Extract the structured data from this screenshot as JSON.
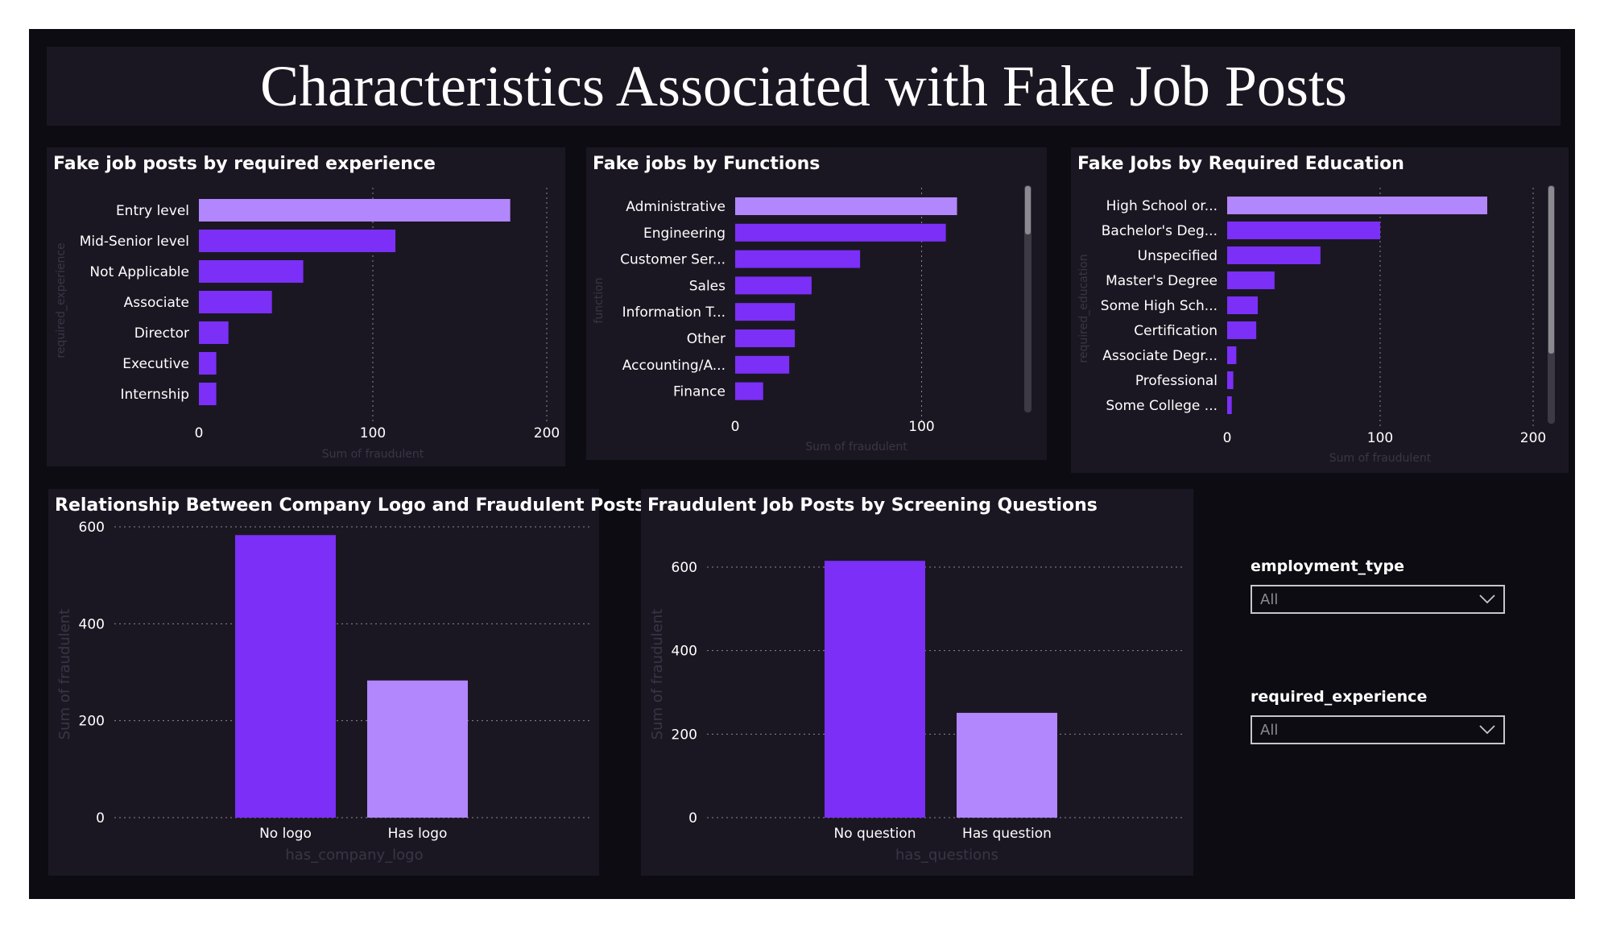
{
  "page": {
    "title": "Characteristics Associated with Fake Job Posts"
  },
  "colors": {
    "background": "#0d0c12",
    "panel": "#1b1722",
    "dark_purple": "#7b2ff7",
    "light_purple": "#b286fd",
    "text": "#ffffff"
  },
  "chart_data": [
    {
      "id": "experience",
      "type": "bar",
      "orientation": "horizontal",
      "title": "Fake job posts by required experience",
      "xlabel": "Sum of fraudulent",
      "ylabel": "required_experience",
      "categories": [
        "Entry level",
        "Mid-Senior level",
        "Not Applicable",
        "Associate",
        "Director",
        "Executive",
        "Internship"
      ],
      "values": [
        179,
        113,
        60,
        42,
        17,
        10,
        10
      ],
      "xlim": [
        0,
        200
      ],
      "xticks": [
        0,
        100,
        200
      ],
      "highlight_first": true,
      "grid": true
    },
    {
      "id": "functions",
      "type": "bar",
      "orientation": "horizontal",
      "title": "Fake jobs by Functions",
      "xlabel": "Sum of fraudulent",
      "ylabel": "function",
      "categories": [
        "Administrative",
        "Engineering",
        "Customer Ser...",
        "Sales",
        "Information T...",
        "Other",
        "Accounting/A...",
        "Finance"
      ],
      "values": [
        119,
        113,
        67,
        41,
        32,
        32,
        29,
        15
      ],
      "xlim": [
        0,
        130
      ],
      "xticks": [
        0,
        100
      ],
      "highlight_first": true,
      "grid": true,
      "scrollbar": true
    },
    {
      "id": "education",
      "type": "bar",
      "orientation": "horizontal",
      "title": "Fake Jobs by Required Education",
      "xlabel": "Sum of fraudulent",
      "ylabel": "required_education",
      "categories": [
        "High School or...",
        "Bachelor's Deg...",
        "Unspecified",
        "Master's Degree",
        "Some High Sch...",
        "Certification",
        "Associate Degr...",
        "Professional",
        "Some College ..."
      ],
      "values": [
        170,
        100,
        61,
        31,
        20,
        19,
        6,
        4,
        3
      ],
      "xlim": [
        0,
        200
      ],
      "xticks": [
        0,
        100,
        200
      ],
      "highlight_first": true,
      "grid": true,
      "scrollbar": true
    },
    {
      "id": "logo",
      "type": "bar",
      "orientation": "vertical",
      "title": "Relationship Between Company Logo and Fraudulent Posts",
      "xlabel": "has_company_logo",
      "ylabel": "Sum of fraudulent",
      "categories": [
        "No logo",
        "Has logo"
      ],
      "values": [
        583,
        283
      ],
      "ylim": [
        0,
        600
      ],
      "yticks": [
        0,
        200,
        400,
        600
      ],
      "grid": true
    },
    {
      "id": "questions",
      "type": "bar",
      "orientation": "vertical",
      "title": "Fraudulent Job Posts by Screening Questions",
      "xlabel": "has_questions",
      "ylabel": "Sum of fraudulent",
      "categories": [
        "No question",
        "Has question"
      ],
      "values": [
        615,
        251
      ],
      "ylim": [
        0,
        600
      ],
      "yticks": [
        0,
        200,
        400,
        600
      ],
      "grid": true
    }
  ],
  "slicers": [
    {
      "label": "employment_type",
      "value": "All",
      "icon": "chevron-down-icon"
    },
    {
      "label": "required_experience",
      "value": "All",
      "icon": "chevron-down-icon"
    }
  ]
}
